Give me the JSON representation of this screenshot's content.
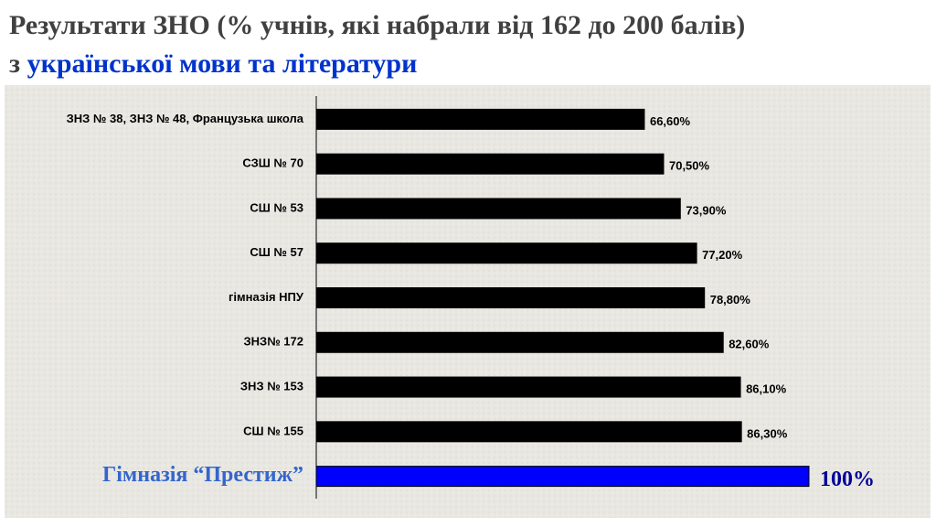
{
  "chart_data": {
    "type": "bar",
    "orientation": "horizontal",
    "title": "Результати ЗНО (% учнів, які набрали від 162 до 200 балів)",
    "subtitle_prefix": "з",
    "subtitle": "української мови та літератури",
    "categories": [
      "ЗНЗ № 38, ЗНЗ № 48, Французька школа",
      "СЗШ № 70",
      "СШ № 53",
      "СШ № 57",
      "гімназія НПУ",
      "ЗНЗ№ 172",
      "ЗНЗ № 153",
      "СШ № 155",
      "Гімназія “Престиж”"
    ],
    "values": [
      66.6,
      70.5,
      73.9,
      77.2,
      78.8,
      82.6,
      86.1,
      86.3,
      100
    ],
    "value_labels": [
      "66,60%",
      "70,50%",
      "73,90%",
      "77,20%",
      "78,80%",
      "82,60%",
      "86,10%",
      "86,30%",
      "100%"
    ],
    "colors": [
      "#000000",
      "#000000",
      "#000000",
      "#000000",
      "#000000",
      "#000000",
      "#000000",
      "#000000",
      "#0000ff"
    ],
    "label_colors": [
      "#000000",
      "#000000",
      "#000000",
      "#000000",
      "#000000",
      "#000000",
      "#000000",
      "#000000",
      "#3366cc"
    ],
    "value_label_colors": [
      "#000000",
      "#000000",
      "#000000",
      "#000000",
      "#000000",
      "#000000",
      "#000000",
      "#000000",
      "#000099"
    ],
    "xlim": [
      0,
      100
    ],
    "grid": false
  }
}
